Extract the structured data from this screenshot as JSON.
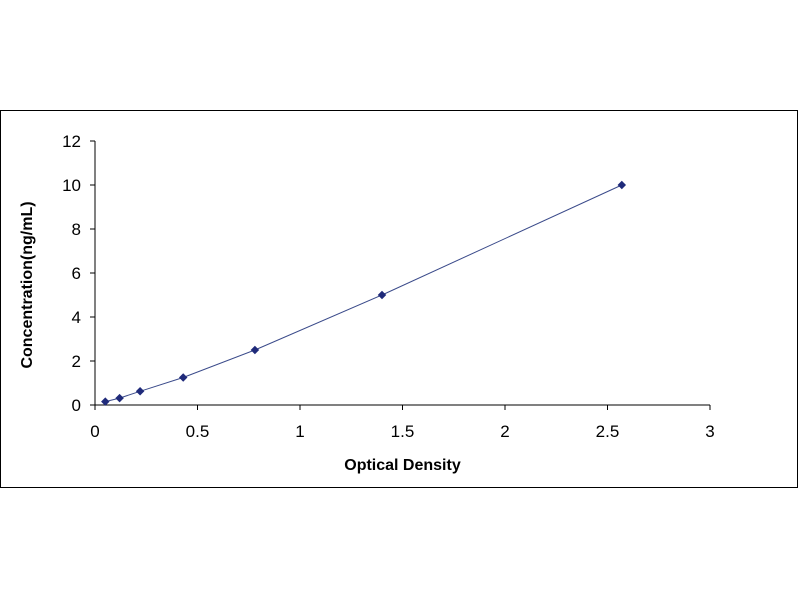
{
  "chart_data": {
    "type": "scatter",
    "title": "",
    "xlabel": "Optical Density",
    "ylabel": "Concentration(ng/mL)",
    "xlim": [
      0,
      3
    ],
    "ylim": [
      0,
      12
    ],
    "x_ticks": [
      0,
      0.5,
      1,
      1.5,
      2,
      2.5,
      3
    ],
    "x_tick_labels": [
      "0",
      "0.5",
      "1",
      "1.5",
      "2",
      "2.5",
      "3"
    ],
    "y_ticks": [
      0,
      2,
      4,
      6,
      8,
      10,
      12
    ],
    "y_tick_labels": [
      "0",
      "2",
      "4",
      "6",
      "8",
      "10",
      "12"
    ],
    "grid": false,
    "legend": "none",
    "series": [
      {
        "x": [
          0.05,
          0.12,
          0.22,
          0.43,
          0.78,
          1.4,
          2.57
        ],
        "y": [
          0.156,
          0.313,
          0.625,
          1.25,
          2.5,
          5,
          10
        ]
      }
    ],
    "trendline": true,
    "marker_color": "#1f2a7a",
    "line_color": "#3a4a8a"
  }
}
